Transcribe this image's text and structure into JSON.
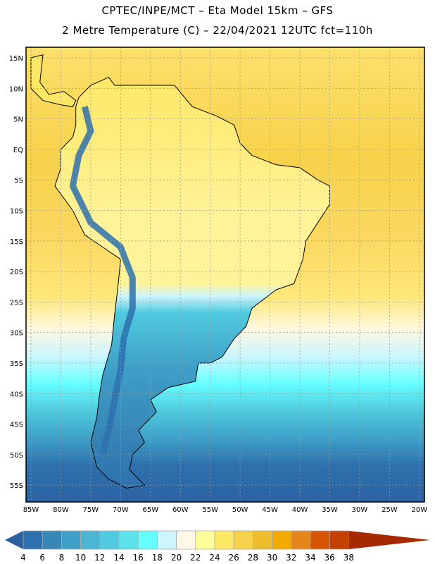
{
  "header": {
    "title_line1": "CPTEC/INPE/MCT –  Eta Model 15km – GFS",
    "title_line2": "2 Metre Temperature (C) – 22/04/2021 12UTC fct=110h"
  },
  "map": {
    "lat_labels": [
      "15N",
      "10N",
      "5N",
      "EQ",
      "5S",
      "10S",
      "15S",
      "20S",
      "25S",
      "30S",
      "35S",
      "40S",
      "45S",
      "50S",
      "55S"
    ],
    "lat_values": [
      15,
      10,
      5,
      0,
      -5,
      -10,
      -15,
      -20,
      -25,
      -30,
      -35,
      -40,
      -45,
      -50,
      -55
    ],
    "lon_labels": [
      "85W",
      "80W",
      "75W",
      "70W",
      "65W",
      "60W",
      "55W",
      "50W",
      "45W",
      "40W",
      "35W",
      "30W",
      "25W",
      "20W"
    ],
    "lon_values": [
      -85,
      -80,
      -75,
      -70,
      -65,
      -60,
      -55,
      -50,
      -45,
      -40,
      -35,
      -30,
      -25,
      -20
    ]
  },
  "colorbar": {
    "labels": [
      "4",
      "6",
      "8",
      "10",
      "12",
      "14",
      "16",
      "18",
      "20",
      "22",
      "24",
      "26",
      "28",
      "30",
      "32",
      "34",
      "36",
      "38"
    ],
    "under_color": "#2b5f9e",
    "over_color": "#a52a00",
    "colors": [
      "#2e70ad",
      "#3787b7",
      "#3fa0c8",
      "#4ab6d4",
      "#4fcade",
      "#5de3ec",
      "#66ffff",
      "#ccf5fd",
      "#fff8e8",
      "#ffff99",
      "#ffe866",
      "#f7d24a",
      "#eebe2e",
      "#f2a900",
      "#e5861a",
      "#d65500",
      "#c44000"
    ]
  }
}
